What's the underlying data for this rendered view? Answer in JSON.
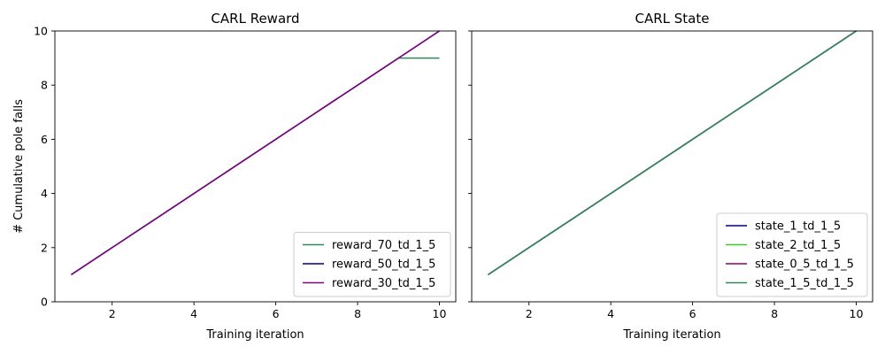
{
  "chart_data": [
    {
      "type": "line",
      "title": "CARL Reward",
      "xlabel": "Training iteration",
      "ylabel": "# Cumulative pole falls",
      "xlim": [
        0.6,
        10.4
      ],
      "ylim": [
        0,
        10
      ],
      "xticks": [
        2,
        4,
        6,
        8,
        10
      ],
      "yticks": [
        0,
        2,
        4,
        6,
        8,
        10
      ],
      "legend_position": "lower-right",
      "series": [
        {
          "name": "reward_70_td_1_5",
          "color": "#2e8b57",
          "x": [
            1,
            2,
            3,
            4,
            5,
            6,
            7,
            8,
            9,
            10
          ],
          "y": [
            1,
            2,
            3,
            4,
            5,
            6,
            7,
            8,
            9,
            9
          ]
        },
        {
          "name": "reward_50_td_1_5",
          "color": "#000080",
          "x": [
            1,
            2,
            3,
            4,
            5,
            6,
            7,
            8,
            9,
            10
          ],
          "y": [
            1,
            2,
            3,
            4,
            5,
            6,
            7,
            8,
            9,
            10
          ]
        },
        {
          "name": "reward_30_td_1_5",
          "color": "#800080",
          "x": [
            1,
            2,
            3,
            4,
            5,
            6,
            7,
            8,
            9,
            10
          ],
          "y": [
            1,
            2,
            3,
            4,
            5,
            6,
            7,
            8,
            9,
            10
          ]
        }
      ]
    },
    {
      "type": "line",
      "title": "CARL State",
      "xlabel": "Training iteration",
      "ylabel": "",
      "xlim": [
        0.6,
        10.4
      ],
      "ylim": [
        0,
        10
      ],
      "xticks": [
        2,
        4,
        6,
        8,
        10
      ],
      "yticks": [
        0,
        2,
        4,
        6,
        8,
        10
      ],
      "shared_y_tick_labels_hidden": true,
      "legend_position": "lower-right",
      "series": [
        {
          "name": "state_1_td_1_5",
          "color": "#000080",
          "x": [
            1,
            2,
            3,
            4,
            5,
            6,
            7,
            8,
            9,
            10
          ],
          "y": [
            1,
            2,
            3,
            4,
            5,
            6,
            7,
            8,
            9,
            10
          ]
        },
        {
          "name": "state_2_td_1_5",
          "color": "#32cd32",
          "x": [
            1,
            2,
            3,
            4,
            5,
            6,
            7,
            8,
            9,
            10
          ],
          "y": [
            1,
            2,
            3,
            4,
            5,
            6,
            7,
            8,
            9,
            10
          ]
        },
        {
          "name": "state_0_5_td_1_5",
          "color": "#800080",
          "x": [
            1,
            2,
            3,
            4,
            5,
            6,
            7,
            8,
            9,
            10
          ],
          "y": [
            1,
            2,
            3,
            4,
            5,
            6,
            7,
            8,
            9,
            10
          ]
        },
        {
          "name": "state_1_5_td_1_5",
          "color": "#2e8b57",
          "x": [
            1,
            2,
            3,
            4,
            5,
            6,
            7,
            8,
            9,
            10
          ],
          "y": [
            1,
            2,
            3,
            4,
            5,
            6,
            7,
            8,
            9,
            10
          ]
        }
      ]
    }
  ]
}
